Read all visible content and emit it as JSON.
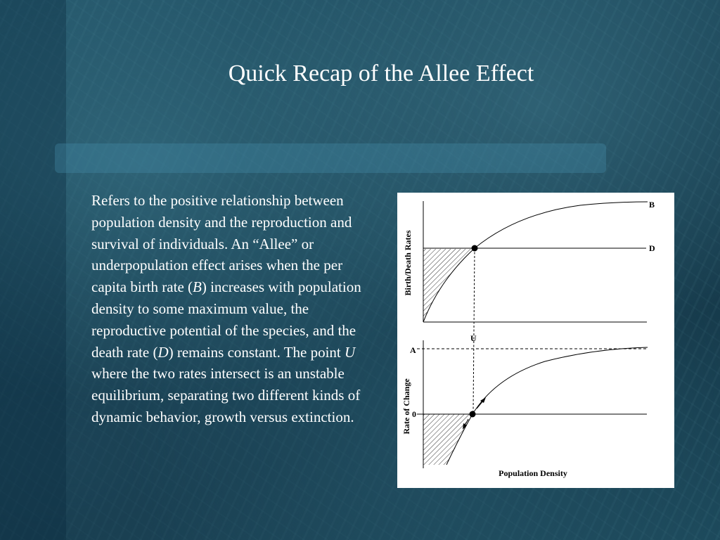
{
  "slide": {
    "title": "Quick Recap of the Allee Effect",
    "body": {
      "p1": "Refers to the positive relationship between population density and the reproduction and survival of individuals.  An “Allee” or underpopulation effect arises when the per capita birth rate (",
      "B": "B",
      "p2": ") increases with population density to some maximum value, the reproductive potential of the species, and the death rate (",
      "D": "D",
      "p3": ") remains constant.  The point ",
      "U": "U",
      "p4": " where the two rates intersect is an unstable equilibrium, separating two different kinds of dynamic behavior, growth versus extinction."
    }
  },
  "diagram": {
    "top_ylabel": "Birth/Death Rates",
    "bottom_ylabel": "Rate of Change",
    "xlabel": "Population Density",
    "curve_b_label": "B",
    "line_d_label": "D",
    "point_u_label": "U",
    "tick_a_label": "A",
    "tick_zero_label": "0"
  },
  "colors": {
    "background": "#1b4456",
    "title_bar": "#468caa",
    "text": "#ffffff",
    "diagram_bg": "#ffffff"
  }
}
